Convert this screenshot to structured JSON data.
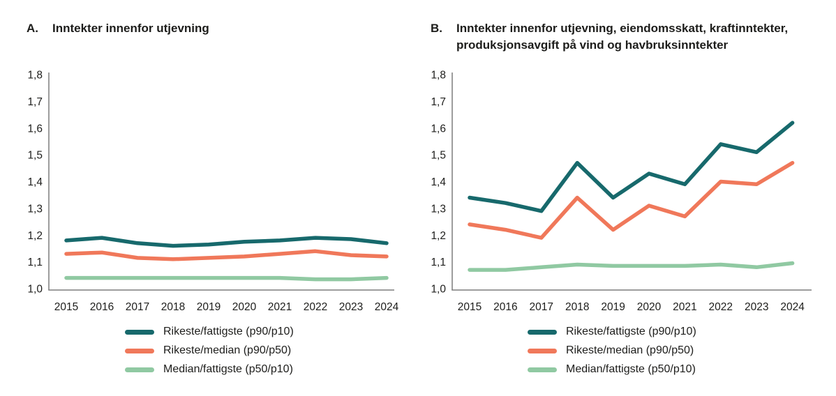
{
  "figure": {
    "panels": [
      {
        "letter": "A.",
        "title_lines": [
          "Inntekter innenfor utjevning"
        ]
      },
      {
        "letter": "B.",
        "title_lines": [
          "Inntekter innenfor utjevning, eiendomsskatt, kraftinntekter,",
          "produksjonsavgift på vind og havbruksinntekter"
        ]
      }
    ]
  },
  "colors": {
    "series_teal": "#17696c",
    "series_orange": "#f0785a",
    "series_green": "#90c9a2",
    "axis": "#7d7d7d",
    "text": "#1d1d1b"
  },
  "chart_data": [
    {
      "type": "line",
      "title": "A. Inntekter innenfor utjevning",
      "categories": [
        "2015",
        "2016",
        "2017",
        "2018",
        "2019",
        "2020",
        "2021",
        "2022",
        "2023",
        "2024"
      ],
      "series": [
        {
          "name": "Rikeste/fattigste (p90/p10)",
          "color": "#17696c",
          "values": [
            1.18,
            1.19,
            1.17,
            1.16,
            1.165,
            1.175,
            1.18,
            1.19,
            1.185,
            1.17
          ]
        },
        {
          "name": "Rikeste/median (p90/p50)",
          "color": "#f0785a",
          "values": [
            1.13,
            1.135,
            1.115,
            1.11,
            1.115,
            1.12,
            1.13,
            1.14,
            1.125,
            1.12
          ]
        },
        {
          "name": "Median/fattigste (p50/p10)",
          "color": "#90c9a2",
          "values": [
            1.04,
            1.04,
            1.04,
            1.04,
            1.04,
            1.04,
            1.04,
            1.035,
            1.035,
            1.04
          ]
        }
      ],
      "ylim": [
        1.0,
        1.8
      ],
      "yticks": [
        "1,0",
        "1,1",
        "1,2",
        "1,3",
        "1,4",
        "1,5",
        "1,6",
        "1,7",
        "1,8"
      ],
      "xlabel": "",
      "ylabel": "",
      "grid": false,
      "legend_position": "bottom"
    },
    {
      "type": "line",
      "title": "B. Inntekter innenfor utjevning, eiendomsskatt, kraftinntekter, produksjonsavgift på vind og havbruksinntekter",
      "categories": [
        "2015",
        "2016",
        "2017",
        "2018",
        "2019",
        "2020",
        "2021",
        "2022",
        "2023",
        "2024"
      ],
      "series": [
        {
          "name": "Rikeste/fattigste (p90/p10)",
          "color": "#17696c",
          "values": [
            1.34,
            1.32,
            1.29,
            1.47,
            1.34,
            1.43,
            1.39,
            1.54,
            1.51,
            1.62
          ]
        },
        {
          "name": "Rikeste/median (p90/p50)",
          "color": "#f0785a",
          "values": [
            1.24,
            1.22,
            1.19,
            1.34,
            1.22,
            1.31,
            1.27,
            1.4,
            1.39,
            1.47
          ]
        },
        {
          "name": "Median/fattigste (p50/p10)",
          "color": "#90c9a2",
          "values": [
            1.07,
            1.07,
            1.08,
            1.09,
            1.085,
            1.085,
            1.085,
            1.09,
            1.08,
            1.095
          ]
        }
      ],
      "ylim": [
        1.0,
        1.8
      ],
      "yticks": [
        "1,0",
        "1,1",
        "1,2",
        "1,3",
        "1,4",
        "1,5",
        "1,6",
        "1,7",
        "1,8"
      ],
      "xlabel": "",
      "ylabel": "",
      "grid": false,
      "legend_position": "bottom"
    }
  ]
}
